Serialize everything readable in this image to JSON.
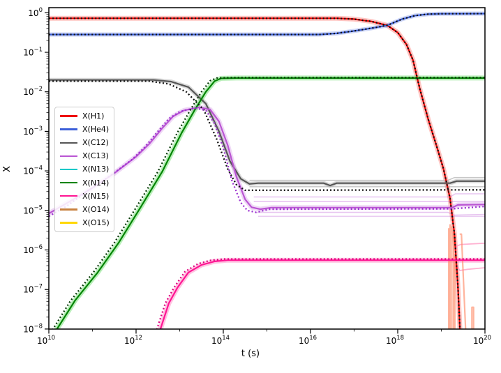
{
  "chart_data": {
    "type": "line",
    "title": "",
    "xlabel": "t (s)",
    "ylabel": "X",
    "x_scale": "log",
    "y_scale": "log",
    "xlim_exp": [
      10,
      20
    ],
    "ylim_exp": [
      -8,
      0.123
    ],
    "grid": false,
    "legend_position": "center-left",
    "x_axis": {
      "major_exponents": [
        10,
        12,
        14,
        16,
        18,
        20
      ],
      "minor_exponents": [
        11,
        13,
        15,
        17,
        19
      ]
    },
    "y_axis": {
      "major_exponents": [
        0,
        -1,
        -2,
        -3,
        -4,
        -5,
        -6,
        -7,
        -8
      ]
    },
    "legend": [
      {
        "label": "X(H1)",
        "color": "#ee0000"
      },
      {
        "label": "X(He4)",
        "color": "#3b5fd9"
      },
      {
        "label": "X(C12)",
        "color": "#555555"
      },
      {
        "label": "X(C13)",
        "color": "#ba55d3"
      },
      {
        "label": "X(N13)",
        "color": "#00c8c8"
      },
      {
        "label": "X(N14)",
        "color": "#028402"
      },
      {
        "label": "X(N15)",
        "color": "#ff1493"
      },
      {
        "label": "X(O14)",
        "color": "#c8813f"
      },
      {
        "label": "X(O15)",
        "color": "#ffd700"
      }
    ],
    "point_units": "log10(t in s), log10(mass fraction X)",
    "series": [
      {
        "name": "X(H1)",
        "color": "#ee0000",
        "width": 2.2,
        "band": {
          "color": "#ff5046",
          "opacity": 0.33,
          "width": 7
        },
        "dotted": {
          "color": "#111111"
        },
        "points": [
          [
            10,
            -0.14
          ],
          [
            16.6,
            -0.14
          ],
          [
            17.0,
            -0.16
          ],
          [
            17.4,
            -0.22
          ],
          [
            17.76,
            -0.32
          ],
          [
            18.0,
            -0.5
          ],
          [
            18.2,
            -0.8
          ],
          [
            18.35,
            -1.2
          ],
          [
            18.5,
            -1.9
          ],
          [
            18.7,
            -2.7
          ],
          [
            18.9,
            -3.4
          ],
          [
            19.05,
            -3.95
          ],
          [
            19.2,
            -4.7
          ],
          [
            19.3,
            -5.6
          ],
          [
            19.38,
            -6.9
          ],
          [
            19.43,
            -8.1
          ]
        ]
      },
      {
        "name": "X(He4)",
        "color": "#3b5fd9",
        "width": 2.2,
        "band": {
          "color": "#5a78e6",
          "opacity": 0.3,
          "width": 6
        },
        "dotted": {
          "color": "#111111"
        },
        "points": [
          [
            10,
            -0.55
          ],
          [
            16.2,
            -0.55
          ],
          [
            16.6,
            -0.52
          ],
          [
            17.0,
            -0.46
          ],
          [
            17.4,
            -0.39
          ],
          [
            17.76,
            -0.32
          ],
          [
            18.1,
            -0.16
          ],
          [
            18.4,
            -0.07
          ],
          [
            18.7,
            -0.035
          ],
          [
            19.0,
            -0.025
          ],
          [
            20,
            -0.022
          ]
        ]
      },
      {
        "name": "X(C12)",
        "color": "#555555",
        "width": 2.2,
        "band": {
          "color": "#828282",
          "opacity": 0.3,
          "width": 6
        },
        "dotted": {
          "color": "#111111",
          "points": [
            [
              10,
              -1.73
            ],
            [
              12.3,
              -1.73
            ],
            [
              12.75,
              -1.8
            ],
            [
              13.15,
              -2.0
            ],
            [
              13.55,
              -2.45
            ],
            [
              13.85,
              -3.2
            ],
            [
              14.1,
              -3.95
            ],
            [
              14.3,
              -4.35
            ],
            [
              14.5,
              -4.49
            ],
            [
              20,
              -4.48
            ]
          ]
        },
        "points": [
          [
            10,
            -1.7
          ],
          [
            12.4,
            -1.7
          ],
          [
            12.8,
            -1.74
          ],
          [
            13.2,
            -1.88
          ],
          [
            13.6,
            -2.3
          ],
          [
            13.9,
            -3.0
          ],
          [
            14.15,
            -3.75
          ],
          [
            14.4,
            -4.2
          ],
          [
            14.6,
            -4.33
          ],
          [
            14.8,
            -4.31
          ],
          [
            16.3,
            -4.31
          ],
          [
            16.45,
            -4.37
          ],
          [
            16.6,
            -4.31
          ],
          [
            19.2,
            -4.31
          ],
          [
            19.35,
            -4.26
          ],
          [
            20,
            -4.26
          ]
        ]
      },
      {
        "name": "X(C13)",
        "color": "#ba55d3",
        "width": 2.2,
        "band": {
          "color": "#c97fe0",
          "opacity": 0.3,
          "width": 7
        },
        "dotted": {
          "color": "#9b30d0",
          "points": [
            [
              10,
              -5.15
            ],
            [
              10.4,
              -4.9
            ],
            [
              10.9,
              -4.5
            ],
            [
              11.4,
              -4.13
            ],
            [
              11.9,
              -3.72
            ],
            [
              12.2,
              -3.4
            ],
            [
              12.5,
              -3.0
            ],
            [
              12.75,
              -2.68
            ],
            [
              13.0,
              -2.5
            ],
            [
              13.35,
              -2.41
            ],
            [
              13.6,
              -2.47
            ],
            [
              13.8,
              -2.8
            ],
            [
              14.0,
              -3.42
            ],
            [
              14.2,
              -4.25
            ],
            [
              14.4,
              -4.8
            ],
            [
              14.55,
              -5.0
            ],
            [
              14.75,
              -5.05
            ],
            [
              15.05,
              -4.97
            ],
            [
              19.25,
              -4.96
            ],
            [
              20,
              -4.9
            ]
          ]
        },
        "points": [
          [
            10,
            -5.08
          ],
          [
            10.5,
            -4.76
          ],
          [
            11,
            -4.43
          ],
          [
            11.5,
            -4.06
          ],
          [
            12,
            -3.64
          ],
          [
            12.3,
            -3.32
          ],
          [
            12.6,
            -2.92
          ],
          [
            12.85,
            -2.62
          ],
          [
            13.1,
            -2.47
          ],
          [
            13.45,
            -2.39
          ],
          [
            13.7,
            -2.45
          ],
          [
            13.9,
            -2.75
          ],
          [
            14.1,
            -3.35
          ],
          [
            14.3,
            -4.15
          ],
          [
            14.5,
            -4.72
          ],
          [
            14.65,
            -4.92
          ],
          [
            14.85,
            -4.97
          ],
          [
            15.1,
            -4.93
          ],
          [
            19.25,
            -4.93
          ],
          [
            19.38,
            -4.86
          ],
          [
            20,
            -4.85
          ]
        ]
      },
      {
        "name": "X(N14)",
        "color": "#028402",
        "width": 2.2,
        "band": {
          "color": "#32cd32",
          "opacity": 0.35,
          "width": 7
        },
        "dotted": {
          "color": "#063b06",
          "points": [
            [
              10.04,
              -8.1
            ],
            [
              10.5,
              -7.28
            ],
            [
              11.02,
              -6.57
            ],
            [
              11.5,
              -5.82
            ],
            [
              12.0,
              -4.93
            ],
            [
              12.5,
              -4.02
            ],
            [
              12.94,
              -3.05
            ],
            [
              13.25,
              -2.45
            ],
            [
              13.5,
              -2.0
            ],
            [
              13.7,
              -1.72
            ],
            [
              13.85,
              -1.65
            ],
            [
              14.2,
              -1.64
            ],
            [
              20,
              -1.64
            ]
          ]
        },
        "points": [
          [
            10.13,
            -8.1
          ],
          [
            10.6,
            -7.28
          ],
          [
            11.12,
            -6.57
          ],
          [
            11.6,
            -5.82
          ],
          [
            12.1,
            -4.93
          ],
          [
            12.6,
            -4.02
          ],
          [
            13.04,
            -3.05
          ],
          [
            13.35,
            -2.45
          ],
          [
            13.6,
            -2.0
          ],
          [
            13.8,
            -1.73
          ],
          [
            13.95,
            -1.66
          ],
          [
            14.3,
            -1.65
          ],
          [
            20,
            -1.65
          ]
        ]
      },
      {
        "name": "X(N15)",
        "color": "#ff1493",
        "width": 2.2,
        "band": {
          "color": "#ff69b4",
          "opacity": 0.4,
          "width": 7
        },
        "dotted": {
          "color": "#e00080",
          "points": [
            [
              12.45,
              -8.1
            ],
            [
              12.67,
              -7.35
            ],
            [
              12.87,
              -6.95
            ],
            [
              13.12,
              -6.55
            ],
            [
              13.42,
              -6.35
            ],
            [
              13.72,
              -6.26
            ],
            [
              14.02,
              -6.23
            ],
            [
              20,
              -6.23
            ]
          ]
        },
        "points": [
          [
            12.53,
            -8.1
          ],
          [
            12.75,
            -7.35
          ],
          [
            12.95,
            -6.95
          ],
          [
            13.2,
            -6.57
          ],
          [
            13.5,
            -6.38
          ],
          [
            13.8,
            -6.29
          ],
          [
            14.1,
            -6.26
          ],
          [
            20,
            -6.26
          ]
        ]
      }
    ],
    "extra_lines": [
      {
        "name": "C12-ensemble-a",
        "color": "#999999",
        "width": 1.6,
        "opacity": 0.55,
        "points": [
          [
            14.6,
            -4.24
          ],
          [
            19.15,
            -4.24
          ],
          [
            19.3,
            -4.17
          ],
          [
            20,
            -4.17
          ]
        ]
      },
      {
        "name": "C12-ensemble-b",
        "color": "#999999",
        "width": 1.6,
        "opacity": 0.5,
        "points": [
          [
            14.6,
            -4.4
          ],
          [
            20,
            -4.4
          ]
        ]
      },
      {
        "name": "C13-ensemble-a",
        "color": "#ba55d3",
        "width": 1.6,
        "opacity": 0.35,
        "points": [
          [
            14.7,
            -4.66
          ],
          [
            19.2,
            -4.66
          ],
          [
            19.32,
            -4.58
          ],
          [
            20,
            -4.58
          ]
        ]
      },
      {
        "name": "C13-ensemble-b",
        "color": "#ba55d3",
        "width": 1.6,
        "opacity": 0.35,
        "points": [
          [
            14.7,
            -4.77
          ],
          [
            20,
            -4.77
          ]
        ]
      },
      {
        "name": "C13-ensemble-c",
        "color": "#ba55d3",
        "width": 1.6,
        "opacity": 0.35,
        "points": [
          [
            14.75,
            -5.05
          ],
          [
            19.15,
            -5.05
          ],
          [
            19.3,
            -5.12
          ],
          [
            20,
            -5.1
          ]
        ]
      },
      {
        "name": "C13-ensemble-d",
        "color": "#ba55d3",
        "width": 1.6,
        "opacity": 0.3,
        "points": [
          [
            14.8,
            -5.15
          ],
          [
            20,
            -5.15
          ]
        ]
      },
      {
        "name": "N15-ensemble-up",
        "color": "#ff9ec6",
        "width": 1.8,
        "opacity": 0.8,
        "points": [
          [
            19.3,
            -6.26
          ],
          [
            19.35,
            -5.9
          ],
          [
            19.45,
            -5.86
          ],
          [
            20,
            -5.83
          ]
        ]
      },
      {
        "name": "N15-ensemble-down",
        "color": "#ff9ec6",
        "width": 1.8,
        "opacity": 0.8,
        "points": [
          [
            19.3,
            -6.26
          ],
          [
            19.42,
            -6.52
          ],
          [
            19.6,
            -6.49
          ],
          [
            20,
            -6.45
          ]
        ]
      },
      {
        "name": "O14-spike-1",
        "color": "#ff8c69",
        "width": 2.2,
        "opacity": 0.65,
        "points": [
          [
            19.17,
            -8.1
          ],
          [
            19.17,
            -5.45
          ]
        ]
      },
      {
        "name": "O14-spike-2",
        "color": "#ff8c69",
        "width": 2.2,
        "opacity": 0.65,
        "points": [
          [
            19.2,
            -8.1
          ],
          [
            19.2,
            -5.35
          ]
        ]
      },
      {
        "name": "O14-spike-3",
        "color": "#ff8c69",
        "width": 2.2,
        "opacity": 0.65,
        "points": [
          [
            19.24,
            -5.4
          ],
          [
            19.24,
            -8.1
          ]
        ]
      },
      {
        "name": "O14-spike-4",
        "color": "#ff8c69",
        "width": 2.2,
        "opacity": 0.65,
        "points": [
          [
            19.28,
            -8.1
          ],
          [
            19.28,
            -5.55
          ]
        ]
      },
      {
        "name": "O14-spike-5",
        "color": "#ff8c69",
        "width": 2.2,
        "opacity": 0.65,
        "points": [
          [
            19.31,
            -6.1
          ],
          [
            19.31,
            -8.1
          ]
        ]
      },
      {
        "name": "O14-spike-6",
        "color": "#ff8c69",
        "width": 2.2,
        "opacity": 0.65,
        "points": [
          [
            19.42,
            -5.6
          ],
          [
            19.46,
            -5.6
          ],
          [
            19.56,
            -8.1
          ]
        ]
      },
      {
        "name": "O14-spike-7",
        "color": "#ff8c69",
        "width": 2.2,
        "opacity": 0.65,
        "points": [
          [
            19.7,
            -8.1
          ],
          [
            19.7,
            -7.45
          ],
          [
            19.74,
            -7.45
          ],
          [
            19.74,
            -8.1
          ]
        ]
      }
    ]
  }
}
